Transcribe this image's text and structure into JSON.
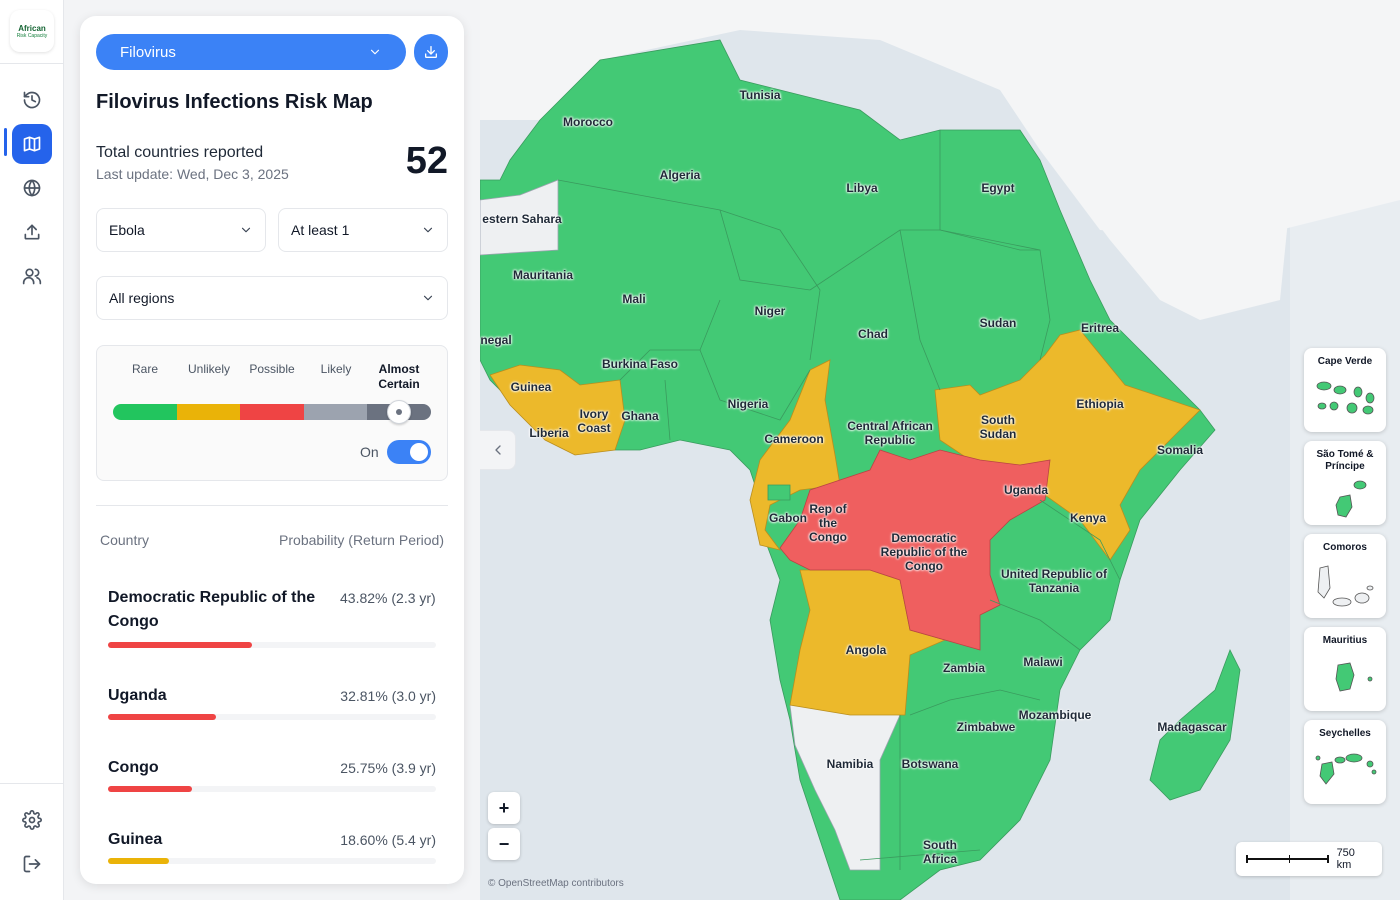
{
  "rail": {
    "logo_top": "African",
    "logo_bottom": "Risk Capacity"
  },
  "panel": {
    "disease_select": "Filovirus",
    "title": "Filovirus Infections Risk Map",
    "total_label": "Total countries reported",
    "last_update": "Last update: Wed, Dec 3, 2025",
    "total_count": "52",
    "virus_select": "Ebola",
    "threshold_select": "At least 1",
    "region_select": "All regions",
    "legend": {
      "labels": [
        "Rare",
        "Unlikely",
        "Possible",
        "Likely",
        "Almost Certain"
      ],
      "colors": [
        "#22c55e",
        "#eab308",
        "#ef4444",
        "#9ca3af",
        "#6b7280"
      ],
      "toggle_label": "On",
      "toggle_on": true
    },
    "table": {
      "col_country": "Country",
      "col_probability": "Probability (Return Period)",
      "rows": [
        {
          "country": "Democratic Republic of the Congo",
          "probability": "43.82% (2.3 yr)",
          "value": 0.4382,
          "color": "#ef4444"
        },
        {
          "country": "Uganda",
          "probability": "32.81% (3.0 yr)",
          "value": 0.3281,
          "color": "#ef4444"
        },
        {
          "country": "Congo",
          "probability": "25.75% (3.9 yr)",
          "value": 0.2575,
          "color": "#ef4444"
        },
        {
          "country": "Guinea",
          "probability": "18.60% (5.4 yr)",
          "value": 0.186,
          "color": "#eab308"
        }
      ]
    }
  },
  "map": {
    "colors": {
      "low": "#43c975",
      "medium": "#ecb92b",
      "high": "#ef5f5f",
      "nodata": "#eef0f2"
    },
    "countries": [
      "Tunisia",
      "Morocco",
      "Algeria",
      "Libya",
      "Egypt",
      "estern Sahara",
      "Mauritania",
      "Mali",
      "Niger",
      "Chad",
      "Sudan",
      "Eritrea",
      "negal",
      "Guinea",
      "Burkina Faso",
      "Ivory Coast",
      "Ghana",
      "Liberia",
      "Nigeria",
      "Cameroon",
      "Central African Republic",
      "South Sudan",
      "Ethiopia",
      "Somalia",
      "Gabon",
      "Rep of the Congo",
      "Democratic Republic of the Congo",
      "Uganda",
      "Kenya",
      "United Republic of Tanzania",
      "Angola",
      "Zambia",
      "Malawi",
      "Mozambique",
      "Zimbabwe",
      "Madagascar",
      "Namibia",
      "Botswana",
      "South Africa"
    ],
    "islands": [
      "Cape Verde",
      "São Tomé & Príncipe",
      "Comoros",
      "Mauritius",
      "Seychelles"
    ],
    "zoom_in": "+",
    "zoom_out": "−",
    "attribution": "© OpenStreetMap contributors",
    "scale_label": "750 km"
  }
}
